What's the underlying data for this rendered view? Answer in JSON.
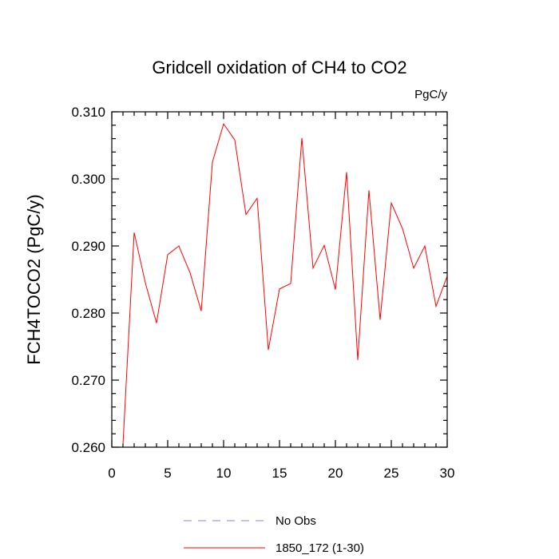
{
  "chart_data": {
    "type": "line",
    "title": "Gridcell oxidation of CH4 to CO2",
    "units": "PgC/y",
    "xlabel": "",
    "ylabel": "FCH4TOCO2  (PgC/y)",
    "xlim": [
      0,
      30
    ],
    "ylim": [
      0.26,
      0.31
    ],
    "xticks": [
      0,
      5,
      10,
      15,
      20,
      25,
      30
    ],
    "xtick_labels": [
      "0",
      "5",
      "10",
      "15",
      "20",
      "25",
      "30"
    ],
    "yticks": [
      0.26,
      0.27,
      0.28,
      0.29,
      0.3,
      0.31
    ],
    "ytick_labels": [
      "0.260",
      "0.270",
      "0.280",
      "0.290",
      "0.300",
      "0.310"
    ],
    "series": [
      {
        "name": "No Obs",
        "style": "dashed",
        "color": "#8080ff",
        "x": [],
        "values": []
      },
      {
        "name": "1850_172 (1-30)",
        "style": "solid",
        "color": "#ff0000",
        "x": [
          1,
          2,
          3,
          4,
          5,
          6,
          7,
          8,
          9,
          10,
          11,
          12,
          13,
          14,
          15,
          16,
          17,
          18,
          19,
          20,
          21,
          22,
          23,
          24,
          25,
          26,
          27,
          28,
          29,
          30
        ],
        "values": [
          0.2605,
          0.292,
          0.2845,
          0.2785,
          0.2887,
          0.29,
          0.286,
          0.2803,
          0.3025,
          0.3082,
          0.3058,
          0.2947,
          0.2971,
          0.2745,
          0.2836,
          0.2844,
          0.3061,
          0.2867,
          0.2901,
          0.2835,
          0.301,
          0.273,
          0.2983,
          0.279,
          0.2964,
          0.2926,
          0.2867,
          0.29,
          0.281,
          0.2855
        ]
      }
    ],
    "legend": {
      "position": "bottom",
      "entries": [
        "No Obs",
        "1850_172 (1-30)"
      ]
    }
  }
}
